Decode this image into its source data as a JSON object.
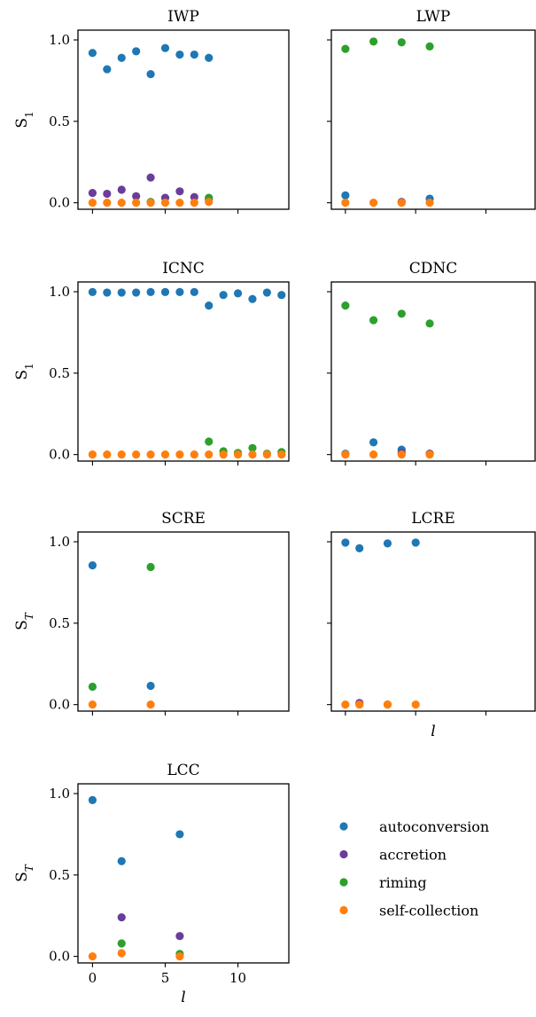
{
  "colors": {
    "autoconversion": "#1f77b4",
    "accretion": "#6a3d9a",
    "riming": "#2ca02c",
    "self-collection": "#ff7f0e"
  },
  "legend": {
    "placement": "bottom-right",
    "entries": [
      "autoconversion",
      "accretion",
      "riming",
      "self-collection"
    ]
  },
  "chart_data": [
    {
      "type": "scatter",
      "title": "IWP",
      "ylabel": "S1",
      "ylabel_sub": "1",
      "xlabel": "",
      "xlim": [
        -1,
        13.5
      ],
      "ylim": [
        -0.04,
        1.06
      ],
      "xticks": [
        0,
        5,
        10
      ],
      "show_xticklabels": false,
      "yticks": [
        0.0,
        0.5,
        1.0
      ],
      "yticklabels": [
        "0.0",
        "0.5",
        "1.0"
      ],
      "show_yticklabels": true,
      "series": [
        {
          "name": "autoconversion",
          "x": [
            0,
            1,
            2,
            3,
            4,
            5,
            6,
            7,
            8
          ],
          "y": [
            0.92,
            0.82,
            0.89,
            0.93,
            0.79,
            0.95,
            0.91,
            0.91,
            0.89
          ]
        },
        {
          "name": "accretion",
          "x": [
            0,
            1,
            2,
            3,
            4,
            5,
            6,
            7,
            8
          ],
          "y": [
            0.06,
            0.055,
            0.08,
            0.04,
            0.155,
            0.03,
            0.07,
            0.035,
            0.02
          ]
        },
        {
          "name": "riming",
          "x": [
            4,
            8
          ],
          "y": [
            0.005,
            0.03
          ]
        },
        {
          "name": "self-collection",
          "x": [
            0,
            1,
            2,
            3,
            4,
            5,
            6,
            7,
            8
          ],
          "y": [
            0.0,
            0.0,
            0.0,
            0.0,
            0.0,
            0.0,
            0.0,
            0.0,
            0.005
          ]
        }
      ]
    },
    {
      "type": "scatter",
      "title": "LWP",
      "ylabel": "",
      "xlabel": "",
      "xlim": [
        -1,
        13.5
      ],
      "ylim": [
        -0.04,
        1.06
      ],
      "xticks": [
        0,
        5,
        10
      ],
      "show_xticklabels": false,
      "yticks": [
        0.0,
        0.5,
        1.0
      ],
      "yticklabels": [
        "0.0",
        "0.5",
        "1.0"
      ],
      "show_yticklabels": false,
      "series": [
        {
          "name": "autoconversion",
          "x": [
            0,
            6
          ],
          "y": [
            0.045,
            0.025
          ]
        },
        {
          "name": "accretion",
          "x": [
            4
          ],
          "y": [
            0.005
          ]
        },
        {
          "name": "riming",
          "x": [
            0,
            2,
            4,
            6
          ],
          "y": [
            0.945,
            0.99,
            0.985,
            0.96
          ]
        },
        {
          "name": "self-collection",
          "x": [
            0,
            2,
            4,
            6
          ],
          "y": [
            0.0,
            0.0,
            0.0,
            0.0
          ]
        }
      ]
    },
    {
      "type": "scatter",
      "title": "ICNC",
      "ylabel": "S1",
      "ylabel_sub": "1",
      "xlabel": "",
      "xlim": [
        -1,
        13.5
      ],
      "ylim": [
        -0.04,
        1.06
      ],
      "xticks": [
        0,
        5,
        10
      ],
      "show_xticklabels": false,
      "yticks": [
        0.0,
        0.5,
        1.0
      ],
      "yticklabels": [
        "0.0",
        "0.5",
        "1.0"
      ],
      "show_yticklabels": true,
      "series": [
        {
          "name": "autoconversion",
          "x": [
            0,
            1,
            2,
            3,
            4,
            5,
            6,
            7,
            8,
            9,
            10,
            11,
            12,
            13
          ],
          "y": [
            0.998,
            0.995,
            0.995,
            0.995,
            0.998,
            0.998,
            0.998,
            0.998,
            0.915,
            0.98,
            0.99,
            0.955,
            0.995,
            0.98
          ]
        },
        {
          "name": "riming",
          "x": [
            8,
            9,
            10,
            11,
            12,
            13
          ],
          "y": [
            0.08,
            0.02,
            0.01,
            0.04,
            0.005,
            0.015
          ]
        },
        {
          "name": "self-collection",
          "x": [
            0,
            1,
            2,
            3,
            4,
            5,
            6,
            7,
            8,
            9,
            10,
            11,
            12,
            13
          ],
          "y": [
            0.0,
            0.0,
            0.0,
            0.0,
            0.0,
            0.0,
            0.0,
            0.0,
            0.0,
            0.0,
            0.0,
            0.0,
            0.0,
            0.0
          ]
        }
      ]
    },
    {
      "type": "scatter",
      "title": "CDNC",
      "ylabel": "",
      "xlabel": "",
      "xlim": [
        -1,
        13.5
      ],
      "ylim": [
        -0.04,
        1.06
      ],
      "xticks": [
        0,
        5,
        10
      ],
      "show_xticklabels": false,
      "yticks": [
        0.0,
        0.5,
        1.0
      ],
      "yticklabels": [
        "0.0",
        "0.5",
        "1.0"
      ],
      "show_yticklabels": false,
      "series": [
        {
          "name": "autoconversion",
          "x": [
            0,
            2,
            4,
            6
          ],
          "y": [
            0.005,
            0.075,
            0.03,
            0.005
          ]
        },
        {
          "name": "accretion",
          "x": [
            4,
            6
          ],
          "y": [
            0.01,
            0.005
          ]
        },
        {
          "name": "riming",
          "x": [
            0,
            2,
            4,
            6
          ],
          "y": [
            0.915,
            0.825,
            0.865,
            0.805
          ]
        },
        {
          "name": "self-collection",
          "x": [
            0,
            2,
            4,
            6
          ],
          "y": [
            0.0,
            0.0,
            0.0,
            0.0
          ]
        }
      ]
    },
    {
      "type": "scatter",
      "title": "SCRE",
      "ylabel": "ST",
      "ylabel_sub": "T",
      "xlabel": "",
      "xlim": [
        -1,
        13.5
      ],
      "ylim": [
        -0.04,
        1.06
      ],
      "xticks": [
        0,
        5,
        10
      ],
      "show_xticklabels": false,
      "yticks": [
        0.0,
        0.5,
        1.0
      ],
      "yticklabels": [
        "0.0",
        "0.5",
        "1.0"
      ],
      "show_yticklabels": true,
      "series": [
        {
          "name": "autoconversion",
          "x": [
            0,
            4
          ],
          "y": [
            0.855,
            0.115
          ]
        },
        {
          "name": "riming",
          "x": [
            0,
            4
          ],
          "y": [
            0.11,
            0.845
          ]
        },
        {
          "name": "self-collection",
          "x": [
            0,
            4
          ],
          "y": [
            0.0,
            0.0
          ]
        }
      ]
    },
    {
      "type": "scatter",
      "title": "LCRE",
      "ylabel": "",
      "xlabel": "l",
      "xlim": [
        -1,
        13.5
      ],
      "ylim": [
        -0.04,
        1.06
      ],
      "xticks": [
        0,
        5,
        10
      ],
      "show_xticklabels": false,
      "yticks": [
        0.0,
        0.5,
        1.0
      ],
      "yticklabels": [
        "0.0",
        "0.5",
        "1.0"
      ],
      "show_yticklabels": false,
      "series": [
        {
          "name": "autoconversion",
          "x": [
            0,
            1,
            3,
            5
          ],
          "y": [
            0.995,
            0.96,
            0.99,
            0.995
          ]
        },
        {
          "name": "accretion",
          "x": [
            1
          ],
          "y": [
            0.01
          ]
        },
        {
          "name": "riming",
          "x": [
            3
          ],
          "y": [
            0.0
          ]
        },
        {
          "name": "self-collection",
          "x": [
            0,
            1,
            3,
            5
          ],
          "y": [
            0.0,
            0.0,
            0.0,
            0.0
          ]
        }
      ]
    },
    {
      "type": "scatter",
      "title": "LCC",
      "ylabel": "ST",
      "ylabel_sub": "T",
      "xlabel": "l",
      "xlim": [
        -1,
        13.5
      ],
      "ylim": [
        -0.04,
        1.06
      ],
      "xticks": [
        0,
        5,
        10
      ],
      "xticklabels": [
        "0",
        "5",
        "10"
      ],
      "show_xticklabels": true,
      "yticks": [
        0.0,
        0.5,
        1.0
      ],
      "yticklabels": [
        "0.0",
        "0.5",
        "1.0"
      ],
      "show_yticklabels": true,
      "series": [
        {
          "name": "autoconversion",
          "x": [
            0,
            2,
            6
          ],
          "y": [
            0.96,
            0.585,
            0.75
          ]
        },
        {
          "name": "accretion",
          "x": [
            2,
            6
          ],
          "y": [
            0.24,
            0.125
          ]
        },
        {
          "name": "riming",
          "x": [
            2,
            6
          ],
          "y": [
            0.08,
            0.015
          ]
        },
        {
          "name": "self-collection",
          "x": [
            0,
            2,
            6
          ],
          "y": [
            0.0,
            0.02,
            0.0
          ]
        }
      ]
    }
  ]
}
